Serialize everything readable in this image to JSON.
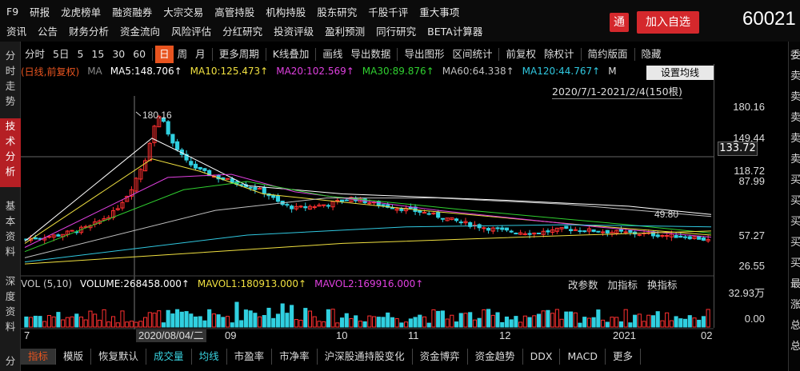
{
  "topnav": {
    "row1": [
      "F9",
      "研报",
      "龙虎榜单",
      "融资融券",
      "大宗交易",
      "高管持股",
      "机构持股",
      "股东研究",
      "千股千评",
      "重大事项"
    ],
    "row2": [
      "资讯",
      "公告",
      "财务分析",
      "资金流向",
      "风险评估",
      "分红研究",
      "投资评级",
      "盈利预测",
      "同行研究",
      "BETA计算器"
    ],
    "tong_label": "通",
    "add_label": "加入自选",
    "code": "60021"
  },
  "leftbar": {
    "tabs": [
      "分时走势",
      "技术分析",
      "基本资料",
      "深度资料",
      "分"
    ]
  },
  "toolbar": {
    "items": [
      "分时",
      "5日",
      "5",
      "15",
      "30",
      "60",
      "日",
      "周",
      "月",
      "更多周期",
      "K线叠加",
      "画线",
      "导出数据",
      "导出图形",
      "区间统计",
      "前复权",
      "除权计",
      "简约版面",
      "隐藏"
    ],
    "selected": "日"
  },
  "legend": {
    "prefix": "(日线,前复权)",
    "ma": "MA",
    "items": [
      {
        "text": "MA5:148.706↑",
        "color": "#ffffff"
      },
      {
        "text": "MA10:125.473↑",
        "color": "#f0e040"
      },
      {
        "text": "MA20:102.569↑",
        "color": "#e040e0"
      },
      {
        "text": "MA30:89.876↑",
        "color": "#30d030"
      },
      {
        "text": "MA60:64.338↑",
        "color": "#c0c0c0"
      },
      {
        "text": "MA120:44.767↑",
        "color": "#30c8e0"
      },
      {
        "text": "M",
        "color": "#dddddd"
      }
    ],
    "setting": "设置均线",
    "range": "2020/7/1-2021/2/4(150根)"
  },
  "yaxis": {
    "labels": [
      "180.16",
      "149.44",
      "118.72",
      "87.99",
      "57.27",
      "26.55"
    ],
    "current": "133.72",
    "vol_labels": [
      "32.93万",
      "0.00"
    ]
  },
  "annotations": {
    "high": "180.16",
    "low": "49.80"
  },
  "volume": {
    "title": "VOL (5,10)",
    "items": [
      {
        "text": "VOLUME:268458.000↑",
        "color": "#ffffff"
      },
      {
        "text": "MAVOL1:180913.000↑",
        "color": "#f0e040"
      },
      {
        "text": "MAVOL2:169916.000↑",
        "color": "#e040e0"
      }
    ],
    "buttons": [
      "改参数",
      "加指标",
      "换指标"
    ]
  },
  "xaxis": {
    "labels": [
      "7",
      "09",
      "10",
      "11",
      "12",
      "2021",
      "02"
    ],
    "cross_date": "2020/08/04/二"
  },
  "bottomtabs": {
    "items": [
      "指标",
      "模版",
      "恢复默认",
      "成交量",
      "均线",
      "市盈率",
      "市净率",
      "沪深股通持股变化",
      "资金博弈",
      "资金趋势",
      "DDX",
      "MACD",
      "更多"
    ],
    "selected": "指标"
  },
  "rightpanel": {
    "chars": [
      "委",
      "卖",
      "卖",
      "卖",
      "卖",
      "卖",
      "买",
      "买",
      "买",
      "买",
      "买",
      "最",
      "涨",
      "总",
      "总"
    ]
  },
  "colors": {
    "up": "#ff3030",
    "down": "#30d0e0",
    "accent": "#e8541f",
    "brand": "#d4282c"
  }
}
